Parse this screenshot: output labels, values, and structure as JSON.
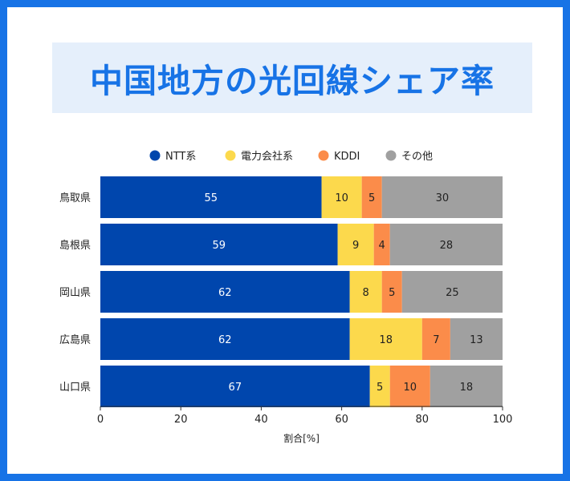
{
  "title": "中国地方の光回線シェア率",
  "colors": {
    "frame": "#1773e6",
    "title_bg": "#e5effb",
    "title_text": "#1773e6"
  },
  "chart_data": {
    "type": "bar",
    "orientation": "horizontal",
    "stacked": true,
    "categories": [
      "鳥取県",
      "島根県",
      "岡山県",
      "広島県",
      "山口県"
    ],
    "series": [
      {
        "name": "NTT系",
        "color": "#0046ad",
        "label_color": "#ffffff",
        "values": [
          55,
          59,
          62,
          62,
          67
        ]
      },
      {
        "name": "電力会社系",
        "color": "#fcd94c",
        "label_color": "#222222",
        "values": [
          10,
          9,
          8,
          18,
          5
        ]
      },
      {
        "name": "KDDI",
        "color": "#fb8c4a",
        "label_color": "#222222",
        "values": [
          5,
          4,
          5,
          7,
          10
        ]
      },
      {
        "name": "その他",
        "color": "#a0a0a0",
        "label_color": "#222222",
        "values": [
          30,
          28,
          25,
          13,
          18
        ]
      }
    ],
    "xlabel": "割合[%]",
    "ylabel": "",
    "xlim": [
      0,
      100
    ],
    "xticks": [
      0,
      20,
      40,
      60,
      80,
      100
    ],
    "legend_position": "top",
    "grid": false
  }
}
